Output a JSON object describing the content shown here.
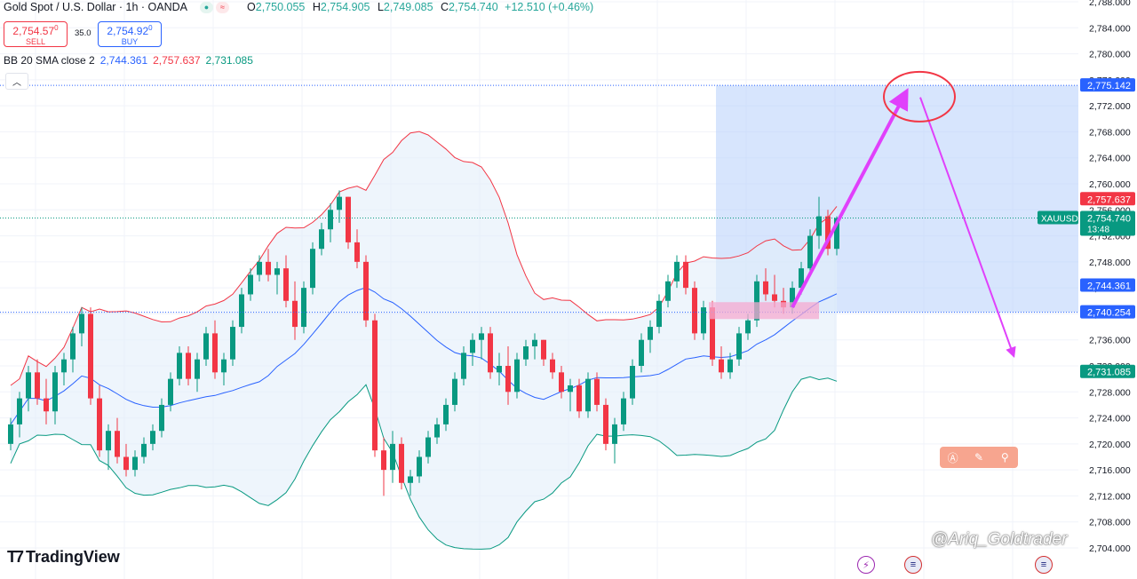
{
  "header": {
    "title": "Gold Spot / U.S. Dollar · 1h · OANDA",
    "open_label": "O",
    "open": "2,750.055",
    "high_label": "H",
    "high": "2,754.905",
    "low_label": "L",
    "low": "2,749.085",
    "close_label": "C",
    "close": "2,754.740",
    "change": "+12.510 (+0.46%)"
  },
  "trade": {
    "sell_price": "2,754.57",
    "sell_price_sup": "0",
    "sell_label": "SELL",
    "spread": "35.0",
    "buy_price": "2,754.92",
    "buy_price_sup": "0",
    "buy_label": "BUY"
  },
  "indicator": {
    "name": "BB 20 SMA close 2",
    "basis": "2,744.361",
    "upper": "2,757.637",
    "lower": "2,731.085"
  },
  "collapse_icon": "chevron-up-icon",
  "brand": {
    "name": "TradingView"
  },
  "watermark": "@Ariq_Goldtrader",
  "toolbar_icons": [
    "ai-icon",
    "pen-icon",
    "search-icon"
  ],
  "event_icons": [
    "lightning-icon",
    "us-flag-icon",
    "us-flag-icon"
  ],
  "colors": {
    "bull": "#089981",
    "bear": "#f23645",
    "basis": "#2962ff",
    "upper": "#f23645",
    "lower": "#089981",
    "band_fill": "#e3eefa",
    "zone": "#b6d0fb",
    "arrow": "#e040fb",
    "circle": "#f23645"
  },
  "chart_data": {
    "type": "candlestick",
    "symbol": "XAUUSD",
    "countdown": "13:48",
    "ylim": [
      2702,
      2789
    ],
    "y_ticks": [
      2704,
      2708,
      2712,
      2716,
      2720,
      2724,
      2728,
      2732,
      2736,
      2740,
      2744,
      2748,
      2752,
      2756,
      2760,
      2764,
      2768,
      2772,
      2776,
      2780,
      2784,
      2788
    ],
    "y_tick_labels": [
      "2,704.000",
      "2,708.000",
      "2,712.000",
      "2,716.000",
      "2,720.000",
      "2,724.000",
      "2,728.000",
      "2,732.000",
      "2,736.000",
      "2,740.000",
      "2,744.000",
      "2,748.000",
      "2,752.000",
      "2,756.000",
      "2,760.000",
      "2,764.000",
      "2,768.000",
      "2,772.000",
      "2,776.000",
      "2,780.000",
      "2,784.000",
      "2,788.000"
    ],
    "price_labels": [
      {
        "text": "2,775.142",
        "value": 2775.142,
        "color": "#2962ff"
      },
      {
        "text": "2,757.637",
        "value": 2757.637,
        "color": "#f23645"
      },
      {
        "text": "2,754.740",
        "value": 2754.74,
        "color": "#089981"
      },
      {
        "text": "2,744.361",
        "value": 2744.361,
        "color": "#2962ff"
      },
      {
        "text": "2,740.254",
        "value": 2740.254,
        "color": "#2962ff"
      },
      {
        "text": "2,731.085",
        "value": 2731.085,
        "color": "#089981"
      }
    ],
    "last_price": 2754.74,
    "zone": {
      "top": 2775.142,
      "bottom": 2740.254,
      "start_index": 79
    },
    "candles": [
      [
        2720,
        2724,
        2719,
        2723
      ],
      [
        2723,
        2728,
        2721,
        2727
      ],
      [
        2727,
        2732,
        2725,
        2731
      ],
      [
        2731,
        2733,
        2726,
        2727
      ],
      [
        2727,
        2730,
        2723,
        2725
      ],
      [
        2725,
        2732,
        2723,
        2731
      ],
      [
        2731,
        2734,
        2729,
        2733
      ],
      [
        2733,
        2738,
        2731,
        2737
      ],
      [
        2737,
        2741,
        2735,
        2740
      ],
      [
        2740,
        2741,
        2726,
        2727
      ],
      [
        2727,
        2729,
        2718,
        2719
      ],
      [
        2719,
        2723,
        2716,
        2722
      ],
      [
        2722,
        2724,
        2717,
        2718
      ],
      [
        2718,
        2720,
        2715,
        2716
      ],
      [
        2716,
        2719,
        2715,
        2718
      ],
      [
        2718,
        2721,
        2717,
        2720
      ],
      [
        2720,
        2723,
        2719,
        2722
      ],
      [
        2722,
        2727,
        2721,
        2726
      ],
      [
        2726,
        2731,
        2725,
        2730
      ],
      [
        2730,
        2735,
        2729,
        2734
      ],
      [
        2734,
        2735,
        2729,
        2730
      ],
      [
        2730,
        2734,
        2728,
        2733
      ],
      [
        2733,
        2738,
        2732,
        2737
      ],
      [
        2737,
        2739,
        2730,
        2731
      ],
      [
        2731,
        2734,
        2729,
        2733
      ],
      [
        2733,
        2739,
        2732,
        2738
      ],
      [
        2738,
        2744,
        2737,
        2743
      ],
      [
        2743,
        2747,
        2742,
        2746
      ],
      [
        2746,
        2749,
        2745,
        2748
      ],
      [
        2748,
        2750,
        2745,
        2746
      ],
      [
        2746,
        2748,
        2743,
        2747
      ],
      [
        2747,
        2749,
        2741,
        2742
      ],
      [
        2742,
        2745,
        2736,
        2738
      ],
      [
        2738,
        2745,
        2737,
        2744
      ],
      [
        2744,
        2751,
        2743,
        2750
      ],
      [
        2750,
        2754,
        2749,
        2753
      ],
      [
        2753,
        2757,
        2751,
        2756
      ],
      [
        2756,
        2759,
        2754,
        2758
      ],
      [
        2758,
        2758,
        2750,
        2751
      ],
      [
        2751,
        2753,
        2747,
        2748
      ],
      [
        2748,
        2749,
        2738,
        2739
      ],
      [
        2739,
        2740,
        2718,
        2719
      ],
      [
        2719,
        2721,
        2712,
        2716
      ],
      [
        2716,
        2722,
        2714,
        2720
      ],
      [
        2720,
        2721,
        2713,
        2714
      ],
      [
        2714,
        2716,
        2712,
        2715
      ],
      [
        2715,
        2719,
        2714,
        2718
      ],
      [
        2718,
        2722,
        2717,
        2721
      ],
      [
        2721,
        2724,
        2720,
        2723
      ],
      [
        2723,
        2727,
        2722,
        2726
      ],
      [
        2726,
        2731,
        2725,
        2730
      ],
      [
        2730,
        2735,
        2729,
        2734
      ],
      [
        2734,
        2737,
        2732,
        2736
      ],
      [
        2736,
        2738,
        2733,
        2737
      ],
      [
        2737,
        2738,
        2730,
        2731
      ],
      [
        2731,
        2734,
        2729,
        2732
      ],
      [
        2732,
        2735,
        2726,
        2728
      ],
      [
        2728,
        2734,
        2727,
        2733
      ],
      [
        2733,
        2736,
        2732,
        2735
      ],
      [
        2735,
        2737,
        2733,
        2736
      ],
      [
        2736,
        2736,
        2732,
        2733
      ],
      [
        2733,
        2734,
        2730,
        2731
      ],
      [
        2731,
        2732,
        2727,
        2728
      ],
      [
        2728,
        2730,
        2725,
        2729
      ],
      [
        2729,
        2730,
        2724,
        2725
      ],
      [
        2725,
        2731,
        2724,
        2730
      ],
      [
        2730,
        2731,
        2725,
        2726
      ],
      [
        2726,
        2727,
        2719,
        2720
      ],
      [
        2720,
        2724,
        2717,
        2723
      ],
      [
        2723,
        2728,
        2722,
        2727
      ],
      [
        2727,
        2733,
        2726,
        2732
      ],
      [
        2732,
        2737,
        2731,
        2736
      ],
      [
        2736,
        2739,
        2734,
        2738
      ],
      [
        2738,
        2743,
        2737,
        2742
      ],
      [
        2742,
        2746,
        2741,
        2745
      ],
      [
        2745,
        2749,
        2744,
        2748
      ],
      [
        2748,
        2749,
        2743,
        2744
      ],
      [
        2744,
        2745,
        2736,
        2737
      ],
      [
        2737,
        2742,
        2736,
        2741
      ],
      [
        2741,
        2742,
        2732,
        2733
      ],
      [
        2733,
        2735,
        2730,
        2731
      ],
      [
        2731,
        2734,
        2730,
        2733
      ],
      [
        2733,
        2738,
        2732,
        2737
      ],
      [
        2737,
        2740,
        2736,
        2739
      ],
      [
        2739,
        2746,
        2738,
        2745
      ],
      [
        2745,
        2747,
        2742,
        2743
      ],
      [
        2743,
        2746,
        2741,
        2742
      ],
      [
        2742,
        2744,
        2740,
        2741
      ],
      [
        2741,
        2745,
        2740,
        2744
      ],
      [
        2744,
        2748,
        2743,
        2747
      ],
      [
        2747,
        2753,
        2746,
        2752
      ],
      [
        2752,
        2758,
        2750,
        2755
      ],
      [
        2755,
        2756,
        2749,
        2750
      ],
      [
        2750,
        2755,
        2749,
        2754.74
      ]
    ]
  }
}
